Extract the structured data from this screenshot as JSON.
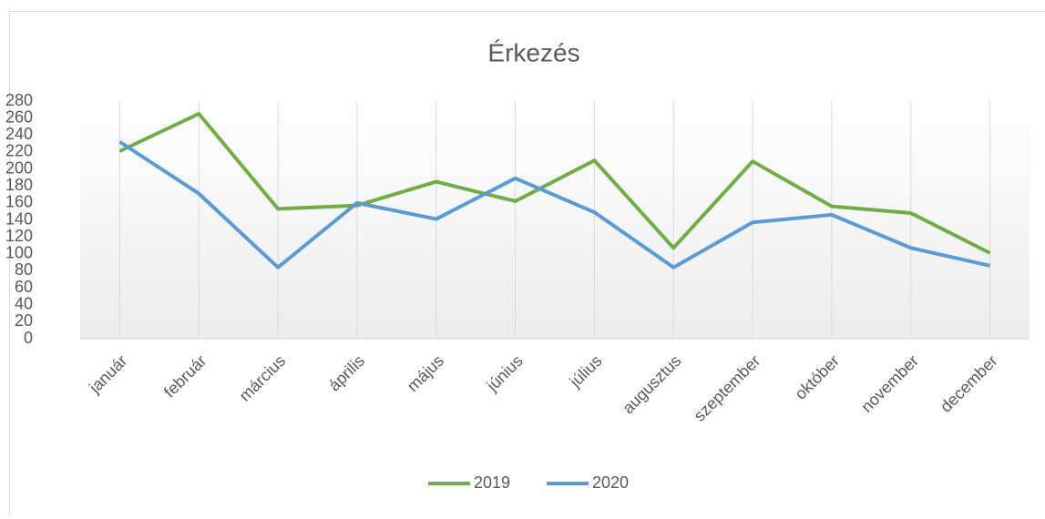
{
  "chart_data": {
    "type": "line",
    "title": "Érkezés",
    "categories": [
      "január",
      "február",
      "március",
      "április",
      "május",
      "június",
      "július",
      "augusztus",
      "szeptember",
      "október",
      "november",
      "december"
    ],
    "series": [
      {
        "name": "2019",
        "color": "#70ad47",
        "values": [
          221,
          265,
          153,
          157,
          185,
          162,
          210,
          107,
          209,
          156,
          148,
          101
        ]
      },
      {
        "name": "2020",
        "color": "#5b9bd5",
        "values": [
          232,
          171,
          84,
          160,
          141,
          189,
          149,
          84,
          137,
          146,
          107,
          86
        ]
      }
    ],
    "ylim": [
      0,
      280
    ],
    "yticks": [
      0,
      20,
      40,
      60,
      80,
      100,
      120,
      140,
      160,
      180,
      200,
      220,
      240,
      260,
      280
    ],
    "xgrid": true,
    "legend": "bottom"
  }
}
